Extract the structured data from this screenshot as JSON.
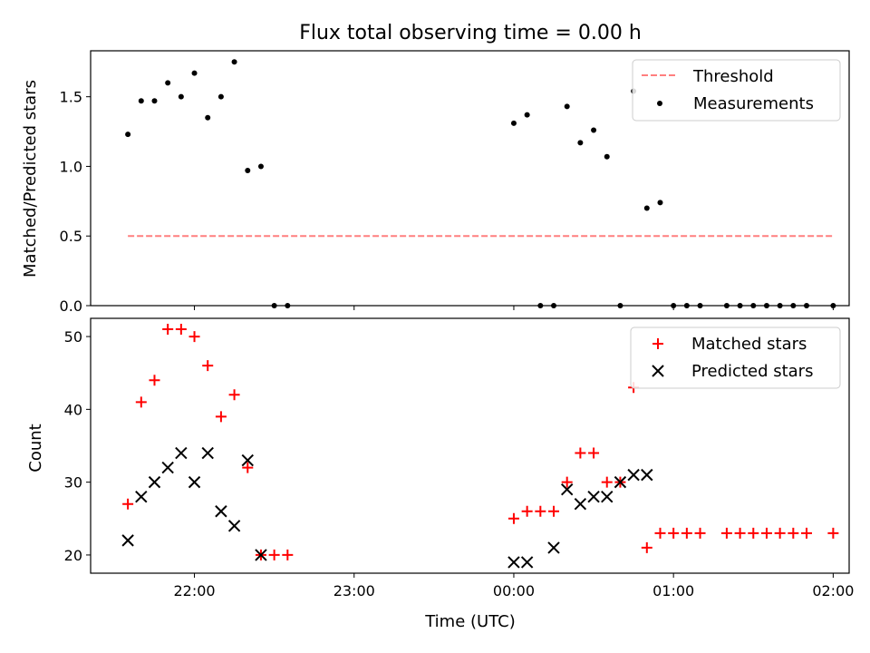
{
  "chart_data": {
    "title": "Flux total observing time = 0.00 h",
    "xlabel": "Time (UTC)",
    "x_tick_labels": [
      "22:00",
      "23:00",
      "00:00",
      "01:00",
      "02:00"
    ],
    "x_tick_times": [
      "22:00",
      "23:00",
      "00:00",
      "01:00",
      "02:00"
    ],
    "xlim": [
      "21:21",
      "02:06"
    ],
    "panels": [
      {
        "type": "scatter",
        "ylabel": "Matched/Predicted stars",
        "ylim": [
          0,
          1.83
        ],
        "yticks": [
          0.0,
          0.5,
          1.0,
          1.5
        ],
        "y_tick_labels": [
          "0.0",
          "0.5",
          "1.0",
          "1.5"
        ],
        "legend": {
          "position": "top-right"
        },
        "series": [
          {
            "name": "Threshold",
            "type": "line",
            "style": "dashed",
            "color": "#ff7f7f",
            "x": [
              "21:35",
              "02:00"
            ],
            "y": [
              0.5,
              0.5
            ]
          },
          {
            "name": "Measurements",
            "type": "scatter",
            "marker": "dot",
            "color": "#000000",
            "x": [
              "21:35",
              "21:40",
              "21:45",
              "21:50",
              "21:55",
              "22:00",
              "22:05",
              "22:10",
              "22:15",
              "22:20",
              "22:25",
              "22:30",
              "22:35",
              "00:00",
              "00:05",
              "00:10",
              "00:15",
              "00:20",
              "00:25",
              "00:30",
              "00:35",
              "00:40",
              "00:45",
              "00:50",
              "00:55",
              "01:00",
              "01:05",
              "01:10",
              "01:20",
              "01:25",
              "01:30",
              "01:35",
              "01:40",
              "01:45",
              "01:50",
              "02:00"
            ],
            "y": [
              1.23,
              1.47,
              1.47,
              1.6,
              1.5,
              1.67,
              1.35,
              1.5,
              1.75,
              0.97,
              1.0,
              0.0,
              0.0,
              1.31,
              1.37,
              0.0,
              0.0,
              1.43,
              1.17,
              1.26,
              1.07,
              0.0,
              1.54,
              0.7,
              0.74,
              0.0,
              0.0,
              0.0,
              0.0,
              0.0,
              0.0,
              0.0,
              0.0,
              0.0,
              0.0,
              0.0
            ]
          }
        ]
      },
      {
        "type": "scatter",
        "ylabel": "Count",
        "ylim": [
          17.5,
          52.5
        ],
        "yticks": [
          20,
          30,
          40,
          50
        ],
        "y_tick_labels": [
          "20",
          "30",
          "40",
          "50"
        ],
        "legend": {
          "position": "top-right"
        },
        "series": [
          {
            "name": "Matched stars",
            "type": "scatter",
            "marker": "plus",
            "color": "#ff0000",
            "x": [
              "21:35",
              "21:40",
              "21:45",
              "21:50",
              "21:55",
              "22:00",
              "22:05",
              "22:10",
              "22:15",
              "22:20",
              "22:25",
              "22:30",
              "22:35",
              "00:00",
              "00:05",
              "00:10",
              "00:15",
              "00:20",
              "00:25",
              "00:30",
              "00:35",
              "00:40",
              "00:45",
              "00:50",
              "00:55",
              "01:00",
              "01:05",
              "01:10",
              "01:20",
              "01:25",
              "01:30",
              "01:35",
              "01:40",
              "01:45",
              "01:50",
              "02:00"
            ],
            "y": [
              27,
              41,
              44,
              51,
              51,
              50,
              46,
              39,
              42,
              32,
              20,
              20,
              20,
              25,
              26,
              26,
              26,
              30,
              34,
              34,
              30,
              30,
              43,
              21,
              23,
              23,
              23,
              23,
              23,
              23,
              23,
              23,
              23,
              23,
              23,
              23
            ]
          },
          {
            "name": "Predicted stars",
            "type": "scatter",
            "marker": "x",
            "color": "#000000",
            "x": [
              "21:35",
              "21:40",
              "21:45",
              "21:50",
              "21:55",
              "22:00",
              "22:05",
              "22:10",
              "22:15",
              "22:20",
              "22:25",
              "00:00",
              "00:05",
              "00:15",
              "00:20",
              "00:25",
              "00:30",
              "00:35",
              "00:40",
              "00:45",
              "00:50"
            ],
            "y": [
              22,
              28,
              30,
              32,
              34,
              30,
              34,
              26,
              24,
              33,
              20,
              19,
              19,
              21,
              29,
              27,
              28,
              28,
              30,
              31,
              31
            ]
          }
        ]
      }
    ]
  }
}
